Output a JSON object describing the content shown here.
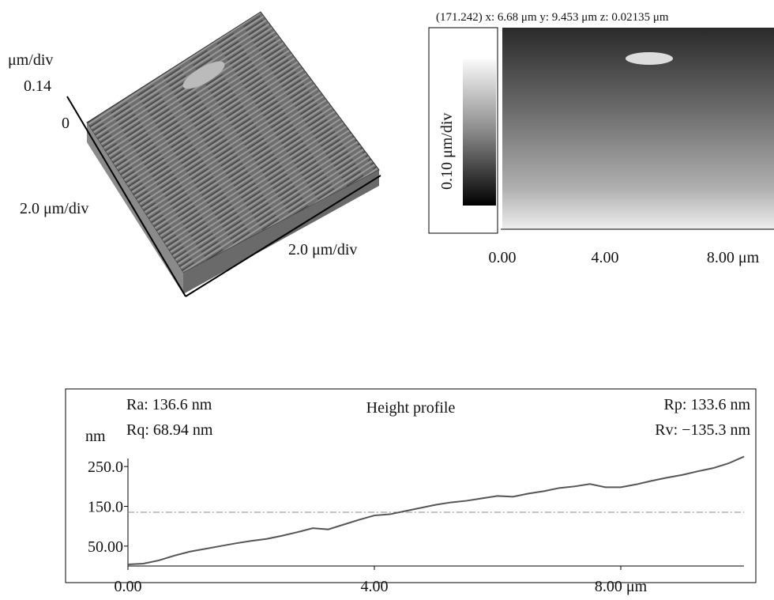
{
  "surface_3d": {
    "z_unit": "μm/div",
    "z_top": "0.14",
    "z_zero": "0",
    "y_scale": "2.0 μm/div",
    "x_scale": "2.0 μm/div"
  },
  "image_view": {
    "header": "(171.242) x: 6.68 μm y: 9.453 μm z: 0.02135 μm",
    "colorbar_label": "0.10 μm/div",
    "xticks": [
      "0.00",
      "4.00",
      "8.00 μm"
    ]
  },
  "chart_data": {
    "type": "line",
    "title": "Height profile",
    "y_label": "nm",
    "annotations": [
      "Ra: 136.6 nm",
      "Rq: 68.94 nm",
      "Rp: 133.6 nm",
      "Rv: −135.3 nm"
    ],
    "x": [
      0,
      0.25,
      0.5,
      0.75,
      1,
      1.25,
      1.5,
      1.75,
      2,
      2.25,
      2.5,
      2.75,
      3,
      3.25,
      3.5,
      3.75,
      4,
      4.25,
      4.5,
      4.75,
      5,
      5.25,
      5.5,
      5.75,
      6,
      6.25,
      6.5,
      6.75,
      7,
      7.25,
      7.5,
      7.75,
      8,
      8.25,
      8.5,
      8.75,
      9,
      9.25,
      9.5,
      9.75,
      10
    ],
    "series": [
      {
        "color": "#555555",
        "values": [
          4,
          6,
          14,
          26,
          36,
          43,
          50,
          57,
          63,
          68,
          76,
          85,
          95,
          92,
          104,
          116,
          127,
          130,
          138,
          146,
          154,
          160,
          164,
          170,
          176,
          174,
          182,
          188,
          196,
          200,
          206,
          198,
          198,
          205,
          214,
          222,
          229,
          238,
          246,
          258,
          275
        ]
      }
    ],
    "reference_line": 135,
    "xlim": [
      0,
      10
    ],
    "ylim": [
      0,
      290
    ],
    "xticks": [
      {
        "value": 0,
        "label": "0.00"
      },
      {
        "value": 4,
        "label": "4.00"
      },
      {
        "value": 8,
        "label": "8.00 μm"
      }
    ],
    "yticks": [
      {
        "value": 50,
        "label": "50.00"
      },
      {
        "value": 150,
        "label": "150.0"
      },
      {
        "value": 250,
        "label": "250.0"
      }
    ]
  }
}
